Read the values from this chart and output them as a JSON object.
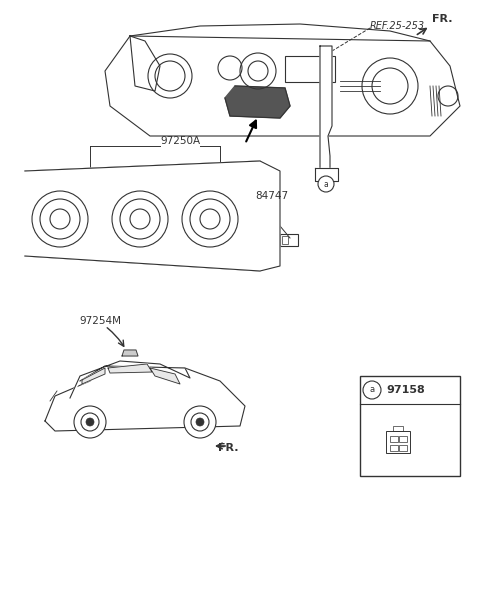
{
  "bg_color": "#ffffff",
  "line_color": "#333333",
  "labels": {
    "fr_top": "FR.",
    "part_97250A": "97250A",
    "part_84747": "84747",
    "part_97254M": "97254M",
    "part_ref": "REF.25-253",
    "part_97158": "97158",
    "circle_a": "a",
    "fr_bottom": "FR."
  },
  "figsize": [
    4.8,
    6.16
  ],
  "dpi": 100
}
